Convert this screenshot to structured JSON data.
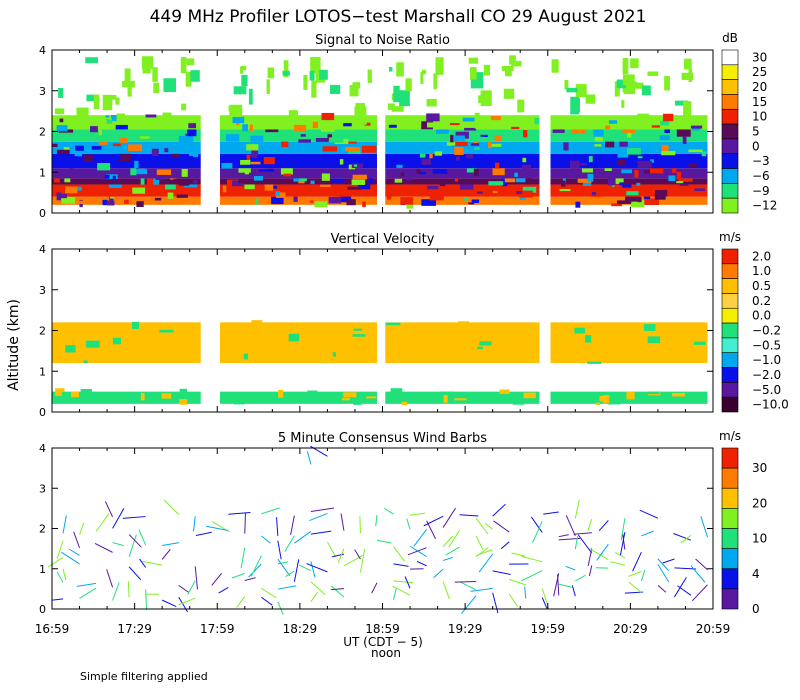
{
  "title": "449 MHz Profiler LOTOS−test Marshall CO 29 August 2021",
  "ylabel": "Altitude (km)",
  "xlabel": "UT  (CDT − 5)",
  "noon_label": "noon",
  "footer": "Simple filtering applied",
  "chart_data": [
    {
      "type": "heatmap",
      "title": "Signal to Noise Ratio",
      "unit": "dB",
      "x": [
        "16:59",
        "17:29",
        "17:59",
        "18:29",
        "18:59",
        "19:29",
        "19:59",
        "20:29",
        "20:59"
      ],
      "xlim": [
        "16:59",
        "20:59"
      ],
      "ylim": [
        0,
        4
      ],
      "yticks": [
        0,
        1,
        2,
        3,
        4
      ],
      "colorbar": {
        "labels": [
          "30",
          "25",
          "20",
          "15",
          "10",
          "5",
          "0",
          "−3",
          "−6",
          "−9",
          "−12"
        ],
        "colors": [
          "#ffffff",
          "#f4ee00",
          "#ffc000",
          "#ff7a00",
          "#ee2200",
          "#5a0b58",
          "#5818a0",
          "#0a10e8",
          "#00a8f0",
          "#20e07a",
          "#80f020"
        ]
      },
      "segments": [
        {
          "start": "16:59",
          "end": "17:53"
        },
        {
          "start": "18:00",
          "end": "18:57"
        },
        {
          "start": "19:00",
          "end": "19:56"
        },
        {
          "start": "20:00",
          "end": "20:57"
        }
      ],
      "layers": [
        {
          "from": 0.2,
          "to": 0.4,
          "color": "#ff7a00"
        },
        {
          "from": 0.4,
          "to": 0.7,
          "color": "#ee2200"
        },
        {
          "from": 0.7,
          "to": 0.85,
          "color": "#5a0b58"
        },
        {
          "from": 0.85,
          "to": 1.1,
          "color": "#5818a0"
        },
        {
          "from": 1.1,
          "to": 1.45,
          "color": "#0a10e8"
        },
        {
          "from": 1.45,
          "to": 1.75,
          "color": "#00a8f0"
        },
        {
          "from": 1.75,
          "to": 2.05,
          "color": "#20e07a"
        },
        {
          "from": 2.05,
          "to": 2.4,
          "color": "#80f020"
        }
      ]
    },
    {
      "type": "heatmap",
      "title": "Vertical Velocity",
      "unit": "m/s",
      "xlim": [
        "16:59",
        "20:59"
      ],
      "ylim": [
        0,
        4
      ],
      "yticks": [
        0,
        1,
        2,
        3,
        4
      ],
      "colorbar": {
        "labels": [
          "2.0",
          "1.0",
          "0.5",
          "0.2",
          "0.0",
          "−0.2",
          "−0.5",
          "−1.0",
          "−2.0",
          "−5.0",
          "−10.0"
        ],
        "colors": [
          "#ee2200",
          "#ff7a00",
          "#ffc000",
          "#ffd040",
          "#f4ee00",
          "#20e07a",
          "#40f0d0",
          "#00a8f0",
          "#0a10e8",
          "#5818a0",
          "#3a0030"
        ]
      },
      "segments": [
        {
          "start": "16:59",
          "end": "17:53"
        },
        {
          "start": "18:00",
          "end": "18:57"
        },
        {
          "start": "19:00",
          "end": "19:56"
        },
        {
          "start": "20:00",
          "end": "20:57"
        }
      ],
      "layers": [
        {
          "from": 0.2,
          "to": 0.5,
          "color": "#20e07a"
        },
        {
          "from": 1.2,
          "to": 2.2,
          "color": "#ffc000"
        }
      ]
    },
    {
      "type": "scatter",
      "title": "5 Minute Consensus Wind Barbs",
      "unit": "m/s",
      "xlim": [
        "16:59",
        "20:59"
      ],
      "ylim": [
        0,
        4
      ],
      "yticks": [
        0,
        1,
        2,
        3,
        4
      ],
      "colorbar": {
        "labels": [
          "30",
          "20",
          "10",
          "4",
          "0"
        ],
        "colors": [
          "#ee2200",
          "#ff7a00",
          "#ffc000",
          "#80f020",
          "#20e07a",
          "#00a8f0",
          "#0a10e8",
          "#5818a0"
        ]
      },
      "altitudes": [
        0.3,
        0.6,
        1.0,
        1.3,
        1.6,
        1.9,
        2.3,
        3.7
      ]
    }
  ]
}
